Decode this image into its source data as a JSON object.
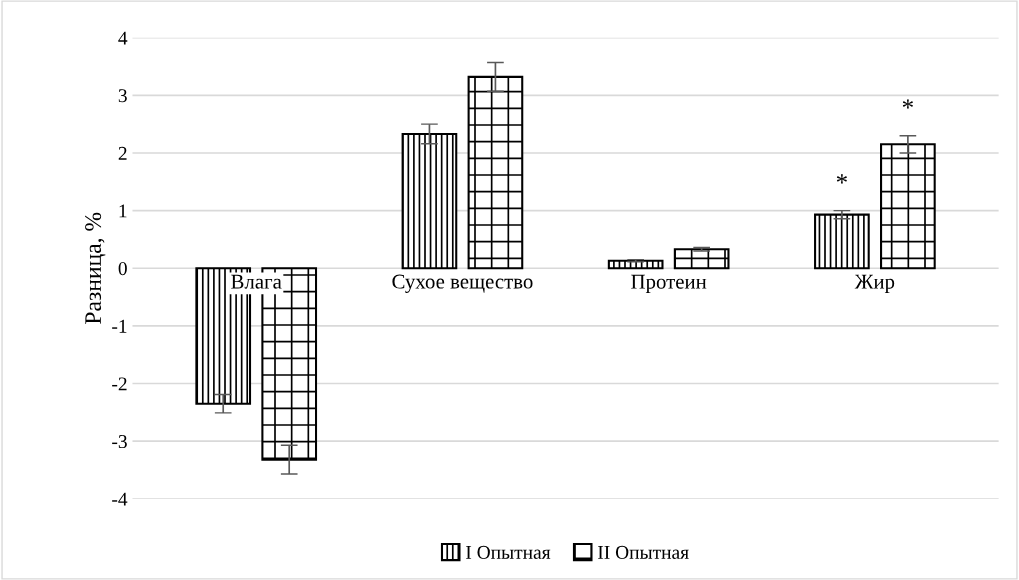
{
  "chart_data": {
    "type": "bar",
    "ylabel": "Разница, %",
    "categories": [
      "Влага",
      "Сухое вещество",
      "Протеин",
      "Жир"
    ],
    "series": [
      {
        "name": "I Опытная",
        "color": "#000000",
        "values": [
          -2.35,
          2.33,
          0.13,
          0.93
        ],
        "errors": [
          0.16,
          0.17,
          0.02,
          0.07
        ]
      },
      {
        "name": "II Опытная",
        "color": "#000000",
        "values": [
          -3.32,
          3.32,
          0.33,
          2.15
        ],
        "errors": [
          0.25,
          0.25,
          0.03,
          0.15
        ]
      }
    ],
    "ylim": [
      -4,
      4
    ],
    "yticks": [
      -4,
      -3,
      -2,
      -1,
      0,
      1,
      2,
      3,
      4
    ],
    "grid": "y",
    "legend": "bottom",
    "annotations": [
      "*",
      "*"
    ]
  }
}
